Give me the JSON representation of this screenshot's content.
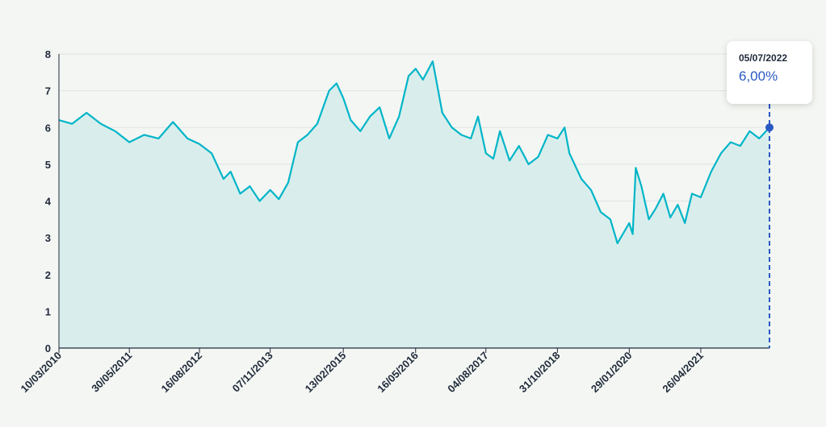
{
  "chart_data": {
    "type": "area",
    "title": "",
    "xlabel": "",
    "ylabel": "",
    "ylim": [
      0,
      8
    ],
    "yticks": [
      0,
      1,
      2,
      3,
      4,
      5,
      6,
      7,
      8
    ],
    "xlim": [
      "2010-03-10",
      "2022-07-05"
    ],
    "x_tick_labels": [
      "10/03/2010",
      "30/05/2011",
      "16/08/2012",
      "07/11/2013",
      "13/02/2015",
      "16/05/2016",
      "04/08/2017",
      "31/10/2018",
      "29/01/2020",
      "26/04/2021"
    ],
    "x_tick_dates": [
      "2010-03-10",
      "2011-05-30",
      "2012-08-16",
      "2013-11-07",
      "2015-02-13",
      "2016-05-16",
      "2017-08-04",
      "2018-10-31",
      "2020-01-29",
      "2021-04-26"
    ],
    "grid": true,
    "series": [
      {
        "color": "#00b5c8",
        "fill": "#d9eeec",
        "points": [
          [
            "2010-03-10",
            6.2
          ],
          [
            "2010-06-01",
            6.1
          ],
          [
            "2010-09-01",
            6.4
          ],
          [
            "2010-12-01",
            6.1
          ],
          [
            "2011-03-01",
            5.9
          ],
          [
            "2011-05-30",
            5.6
          ],
          [
            "2011-09-01",
            5.8
          ],
          [
            "2011-12-01",
            5.7
          ],
          [
            "2012-03-01",
            6.15
          ],
          [
            "2012-06-01",
            5.7
          ],
          [
            "2012-08-16",
            5.55
          ],
          [
            "2012-11-01",
            5.3
          ],
          [
            "2013-01-15",
            4.6
          ],
          [
            "2013-03-01",
            4.8
          ],
          [
            "2013-05-01",
            4.2
          ],
          [
            "2013-07-01",
            4.4
          ],
          [
            "2013-09-01",
            4.0
          ],
          [
            "2013-11-07",
            4.3
          ],
          [
            "2014-01-01",
            4.05
          ],
          [
            "2014-03-01",
            4.5
          ],
          [
            "2014-05-01",
            5.6
          ],
          [
            "2014-07-01",
            5.8
          ],
          [
            "2014-09-01",
            6.1
          ],
          [
            "2014-11-15",
            7.0
          ],
          [
            "2015-01-01",
            7.2
          ],
          [
            "2015-02-13",
            6.8
          ],
          [
            "2015-04-01",
            6.2
          ],
          [
            "2015-06-01",
            5.9
          ],
          [
            "2015-08-01",
            6.3
          ],
          [
            "2015-10-01",
            6.55
          ],
          [
            "2015-12-01",
            5.7
          ],
          [
            "2016-02-01",
            6.3
          ],
          [
            "2016-04-01",
            7.4
          ],
          [
            "2016-05-16",
            7.6
          ],
          [
            "2016-07-01",
            7.3
          ],
          [
            "2016-09-01",
            7.8
          ],
          [
            "2016-11-01",
            6.4
          ],
          [
            "2017-01-01",
            6.0
          ],
          [
            "2017-03-01",
            5.8
          ],
          [
            "2017-05-01",
            5.7
          ],
          [
            "2017-06-15",
            6.3
          ],
          [
            "2017-08-04",
            5.3
          ],
          [
            "2017-09-20",
            5.15
          ],
          [
            "2017-11-01",
            5.9
          ],
          [
            "2018-01-01",
            5.1
          ],
          [
            "2018-03-01",
            5.5
          ],
          [
            "2018-05-01",
            5.0
          ],
          [
            "2018-07-01",
            5.2
          ],
          [
            "2018-09-01",
            5.8
          ],
          [
            "2018-10-31",
            5.7
          ],
          [
            "2018-12-15",
            6.0
          ],
          [
            "2019-01-15",
            5.3
          ],
          [
            "2019-04-01",
            4.6
          ],
          [
            "2019-06-01",
            4.3
          ],
          [
            "2019-08-01",
            3.7
          ],
          [
            "2019-10-01",
            3.5
          ],
          [
            "2019-11-15",
            2.85
          ],
          [
            "2020-01-29",
            3.4
          ],
          [
            "2020-02-20",
            3.1
          ],
          [
            "2020-03-10",
            4.9
          ],
          [
            "2020-04-15",
            4.4
          ],
          [
            "2020-06-01",
            3.5
          ],
          [
            "2020-07-15",
            3.8
          ],
          [
            "2020-09-01",
            4.2
          ],
          [
            "2020-10-15",
            3.55
          ],
          [
            "2020-12-01",
            3.9
          ],
          [
            "2021-01-15",
            3.4
          ],
          [
            "2021-03-01",
            4.2
          ],
          [
            "2021-04-26",
            4.1
          ],
          [
            "2021-07-01",
            4.8
          ],
          [
            "2021-09-01",
            5.3
          ],
          [
            "2021-11-01",
            5.6
          ],
          [
            "2022-01-01",
            5.5
          ],
          [
            "2022-03-01",
            5.9
          ],
          [
            "2022-05-01",
            5.7
          ],
          [
            "2022-07-05",
            6.0
          ]
        ]
      }
    ],
    "highlight": {
      "date": "05/07/2022",
      "value": 6.0,
      "label": "6,00%"
    }
  },
  "tooltip": {
    "date": "05/07/2022",
    "value": "6,00%"
  },
  "colors": {
    "line": "#00b5c8",
    "area": "#d9eeec",
    "marker": "#2b59c3",
    "grid": "#dfe3e6"
  }
}
